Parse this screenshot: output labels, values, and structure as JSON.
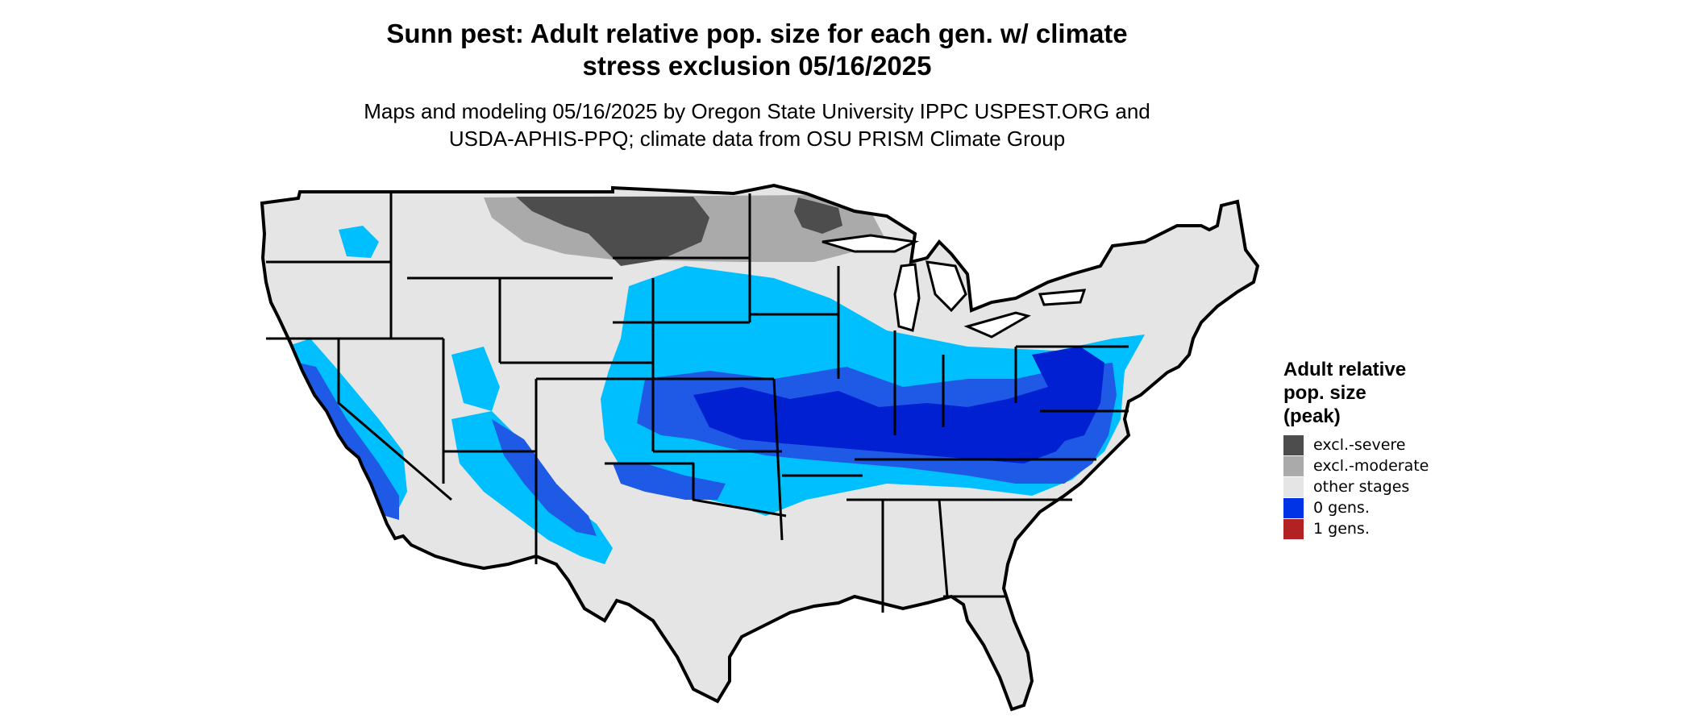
{
  "title_lines": [
    "Sunn pest: Adult relative pop. size for each gen. w/ climate",
    "stress exclusion 05/16/2025"
  ],
  "subtitle_lines": [
    "Maps and modeling 05/16/2025 by Oregon State University IPPC USPEST.ORG and",
    "USDA-APHIS-PPQ; climate data from OSU PRISM Climate Group"
  ],
  "legend": {
    "title_lines": [
      "Adult relative",
      "pop. size",
      "(peak)"
    ],
    "items": [
      {
        "label": "excl.-severe",
        "color": "#4d4d4d"
      },
      {
        "label": "excl.-moderate",
        "color": "#aaaaaa"
      },
      {
        "label": "other stages",
        "color": "#e5e5e5"
      },
      {
        "label": "0 gens.",
        "color": "#0032e6"
      },
      {
        "label": "1 gens.",
        "color": "#b22222"
      }
    ]
  },
  "map_colors": {
    "base": "#e5e5e5",
    "light_blue": "#00bfff",
    "mid_blue": "#1e5ae6",
    "dark_blue": "#0020d2",
    "border": "#000000"
  }
}
